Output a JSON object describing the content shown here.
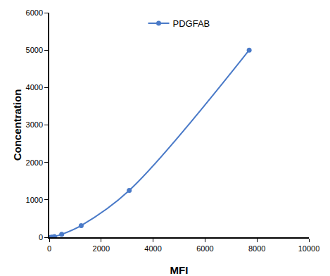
{
  "chart_data": {
    "type": "line",
    "x_label": "MFI",
    "y_label": "Concentration",
    "x": [
      60,
      110,
      200,
      480,
      1230,
      3080,
      7700
    ],
    "series": [
      {
        "name": "PDGFAB",
        "color": "#4a7ac8",
        "marker": "circle",
        "line_style": "solid",
        "values": [
          0,
          4.9,
          19.5,
          78,
          312.5,
          1250,
          5000
        ]
      }
    ],
    "xlim": [
      0,
      10000
    ],
    "xticks": [
      0,
      2000,
      4000,
      6000,
      8000,
      10000
    ],
    "ylim": [
      0,
      6000
    ],
    "yticks": [
      0,
      1000,
      2000,
      3000,
      4000,
      5000,
      6000
    ],
    "grid": false,
    "legend": "top"
  }
}
